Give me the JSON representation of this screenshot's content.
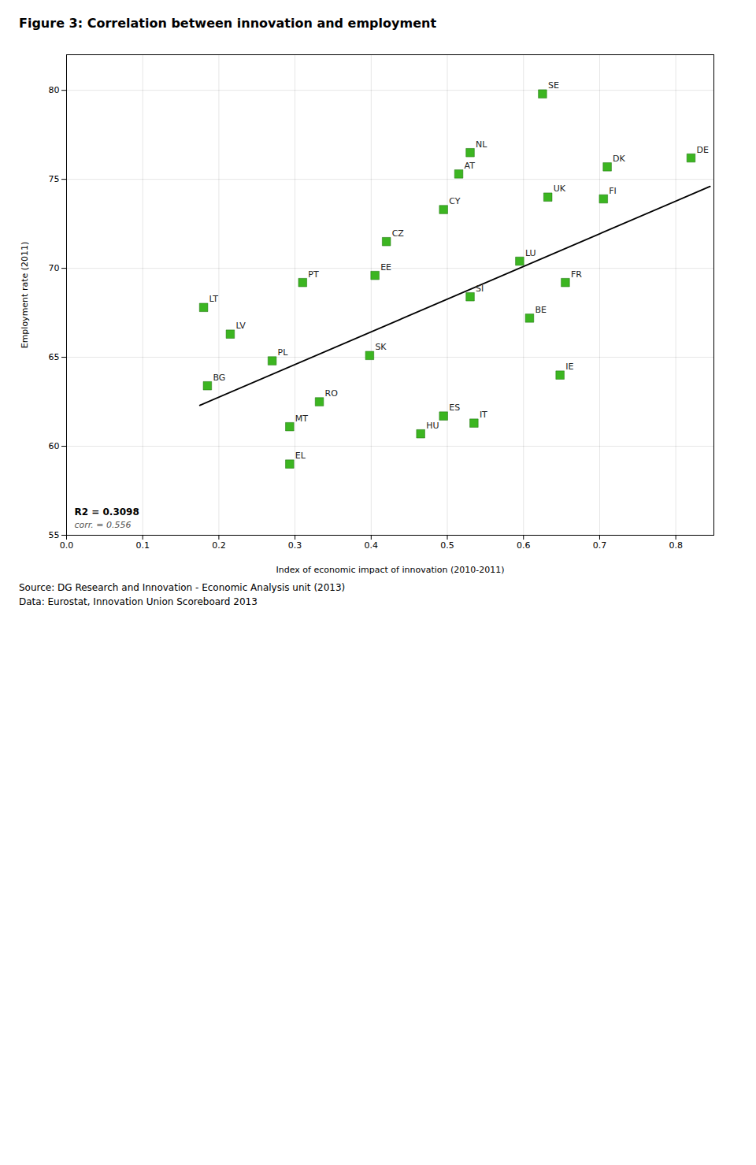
{
  "chart_data": {
    "type": "scatter",
    "title": "Figure 3: Correlation between innovation and employment",
    "x_label": "Index of economic impact of innovation (2010-2011)",
    "y_label": "Employment rate (2011)",
    "xlim": [
      0.0,
      0.85
    ],
    "ylim": [
      55.0,
      82.0
    ],
    "xticks": [
      {
        "value": 0.0,
        "label": "0.0"
      },
      0.1,
      0.2,
      0.3,
      0.4,
      0.5,
      0.6,
      0.7,
      0.8
    ],
    "yticks": [
      55,
      60,
      65,
      70,
      75,
      80
    ],
    "grid": true,
    "color": "#3cb521",
    "marker": "square",
    "point_labels": [
      "SE",
      "NL",
      "AT",
      "CY",
      "CZ",
      "EE",
      "PT",
      "LT",
      "LV",
      "PL",
      "BG",
      "MT",
      "RO",
      "EL",
      "SK",
      "ES",
      "HU",
      "IT",
      "IE",
      "BE",
      "SI",
      "LU",
      "FR",
      "UK",
      "FI",
      "DK",
      "DE"
    ],
    "x": [
      0.625,
      0.53,
      0.515,
      0.495,
      0.42,
      0.405,
      0.31,
      0.18,
      0.215,
      0.27,
      0.185,
      0.293,
      0.332,
      0.293,
      0.398,
      0.495,
      0.465,
      0.535,
      0.648,
      0.608,
      0.53,
      0.595,
      0.655,
      0.632,
      0.705,
      0.71,
      0.82
    ],
    "y": [
      79.8,
      76.5,
      75.3,
      73.3,
      71.5,
      69.6,
      69.2,
      67.8,
      66.3,
      64.8,
      63.4,
      61.1,
      62.5,
      59.0,
      65.1,
      61.7,
      60.7,
      61.3,
      64.0,
      67.2,
      68.4,
      70.4,
      69.2,
      74.0,
      73.9,
      75.7,
      76.2
    ],
    "trendline": {
      "x": [
        0.175,
        0.845
      ],
      "y": [
        62.3,
        74.6
      ]
    },
    "annotations": [
      "R2 = 0.3098",
      "corr. = 0.556"
    ],
    "notes": [
      "Source: DG Research and Innovation - Economic Analysis unit (2013)",
      "Data: Eurostat, Innovation Union Scoreboard 2013"
    ]
  }
}
